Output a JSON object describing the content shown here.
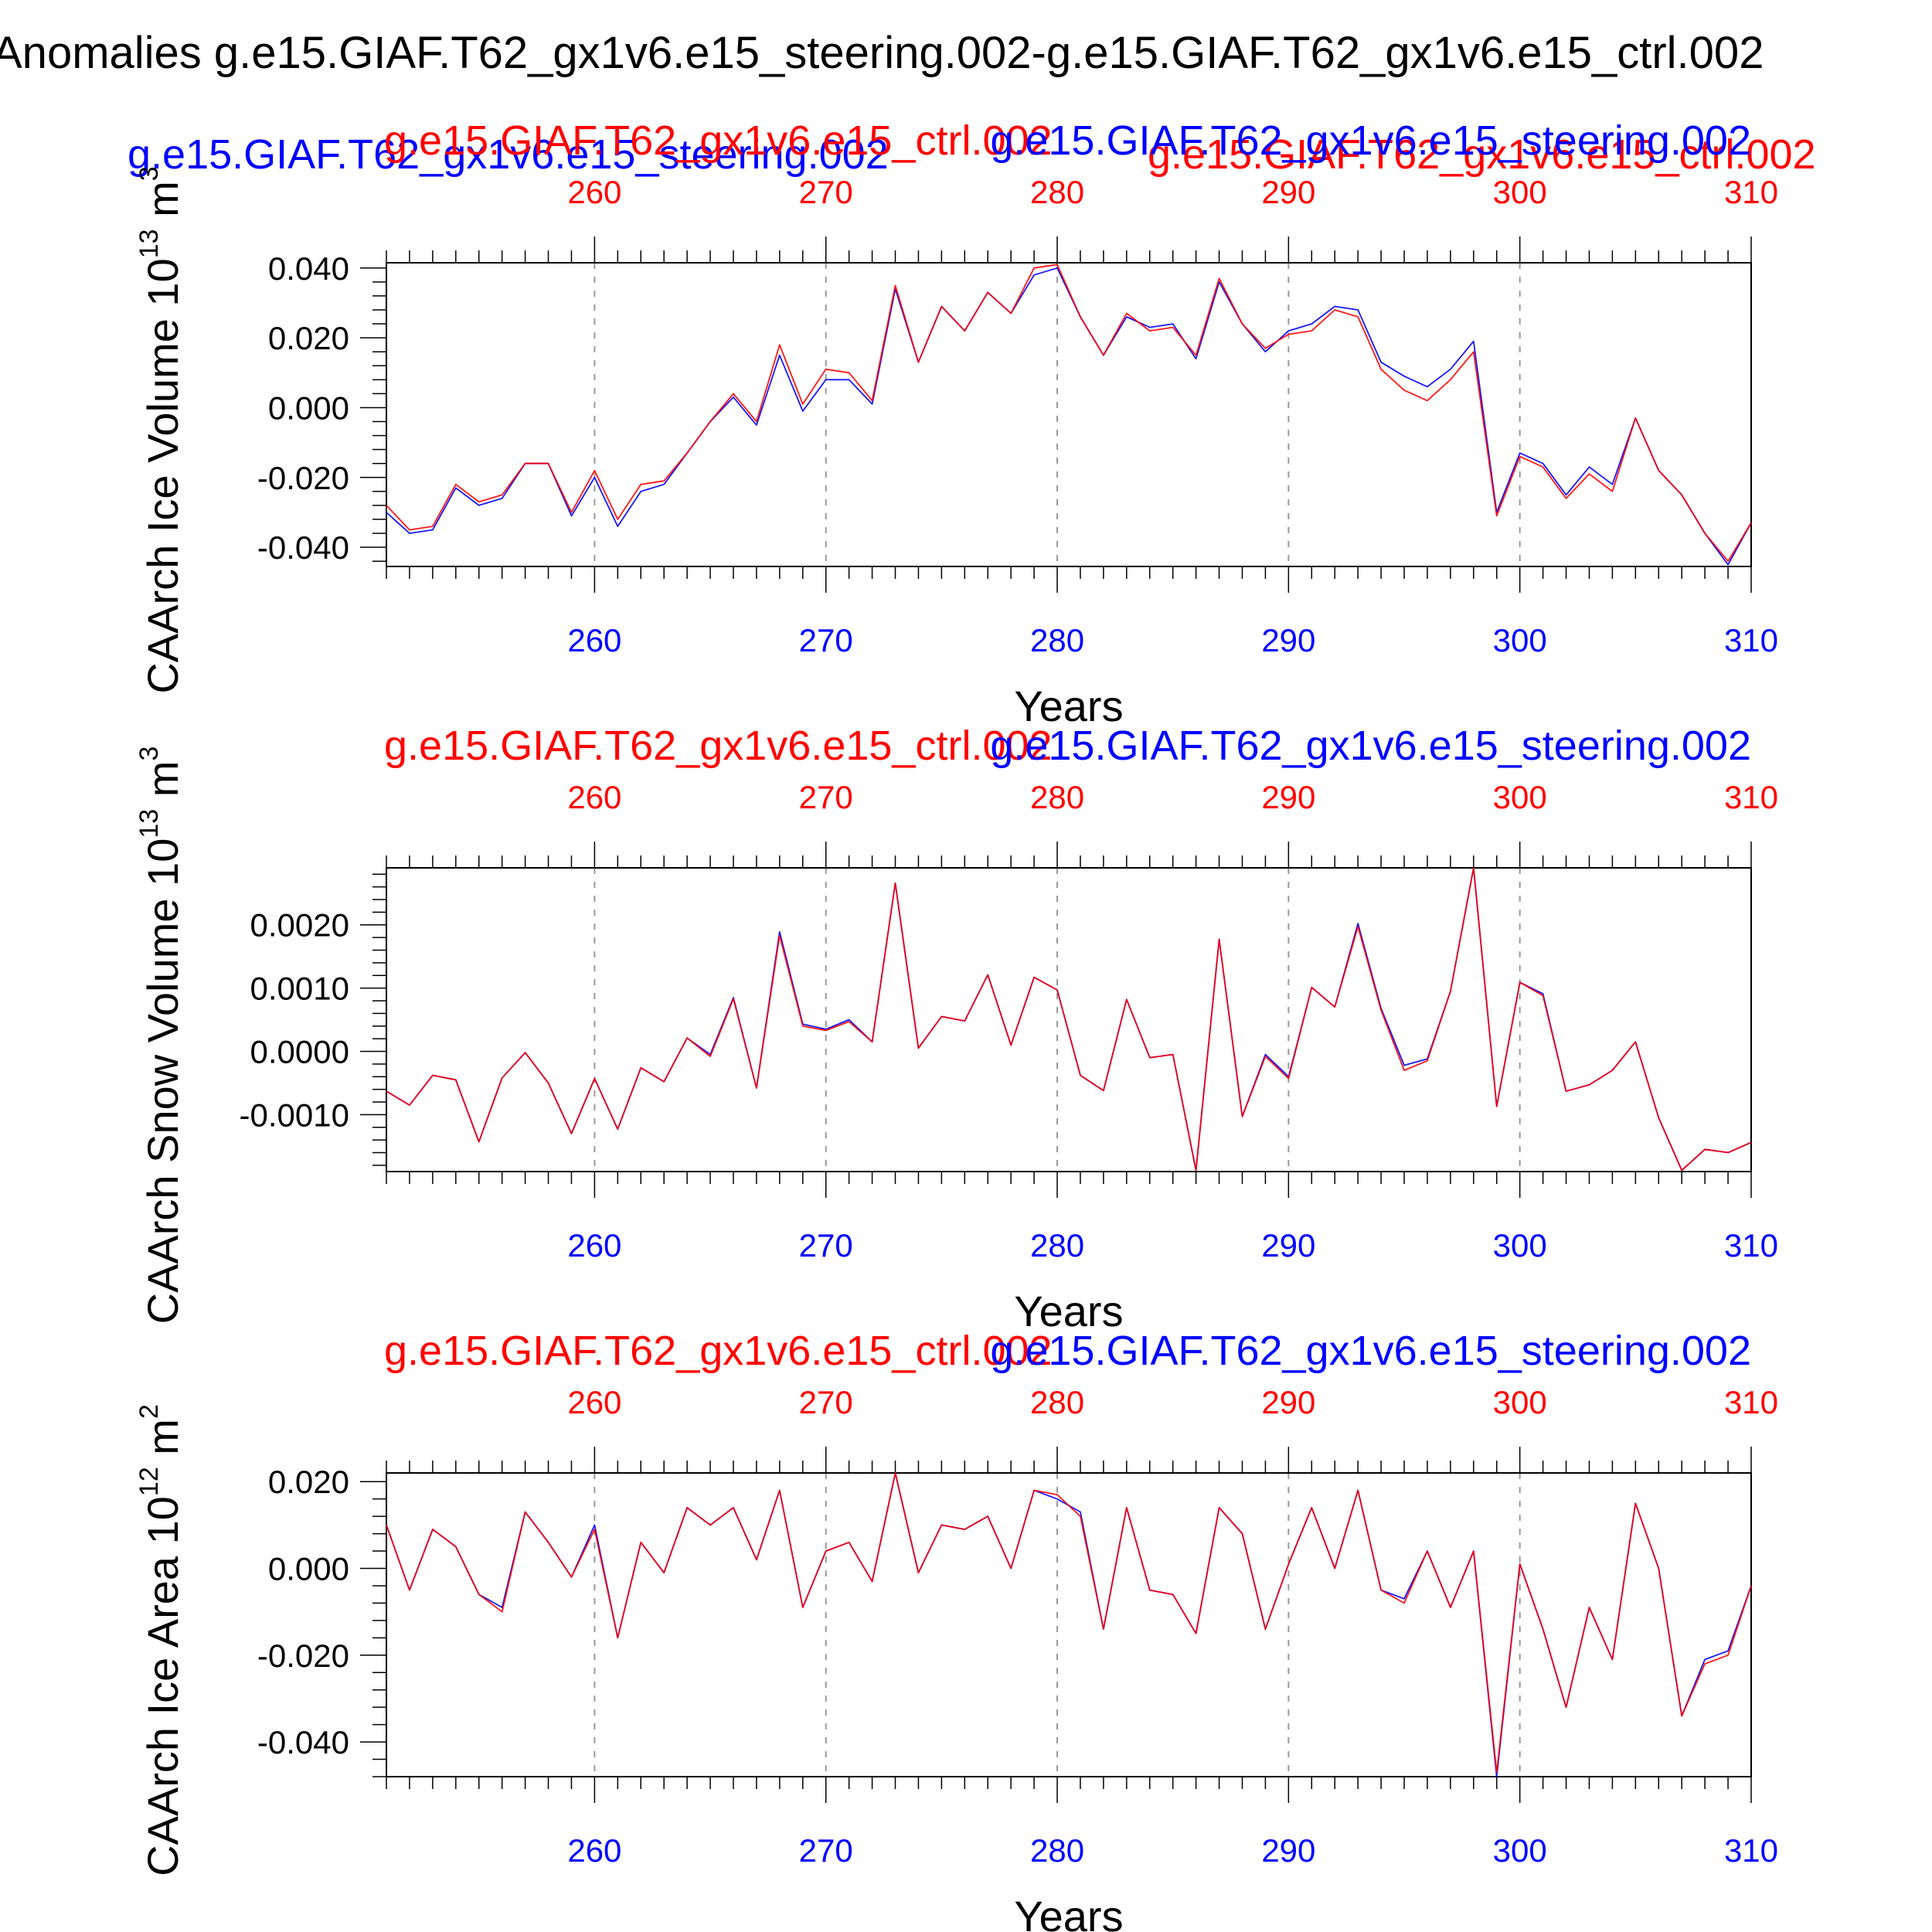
{
  "title": "Anomalies g.e15.GIAF.T62_gx1v6.e15_steering.002-g.e15.GIAF.T62_gx1v6.e15_ctrl.002",
  "header_labels": {
    "blue_left": "g.e15.GIAF.T62_gx1v6.e15_steering.002",
    "red_right": "g.e15.GIAF.T62_gx1v6.e15_ctrl.002"
  },
  "colors": {
    "steering": "#0000ff",
    "ctrl": "#ff0000",
    "axis": "#000000",
    "grid": "#999999"
  },
  "chart_data": [
    {
      "type": "line",
      "panel_id": "ice-volume",
      "ylabel": "CAArch Ice Volume 10",
      "ylabel_exp": "13",
      "ylabel_unit": " m",
      "ylabel_unit_exp": "3",
      "xlabel": "Years",
      "top_left_title": "g.e15.GIAF.T62_gx1v6.e15_ctrl.002",
      "top_right_title": "g.e15.GIAF.T62_gx1v6.e15_steering.002",
      "xlim": [
        251,
        310
      ],
      "ylim": [
        -0.0455,
        0.0415
      ],
      "xticks": [
        "260",
        "270",
        "280",
        "290",
        "300",
        "310"
      ],
      "xtick_values": [
        260,
        270,
        280,
        290,
        300,
        310
      ],
      "yticks": [
        "-0.040",
        "-0.020",
        "0.000",
        "0.020",
        "0.040"
      ],
      "ytick_values": [
        -0.04,
        -0.02,
        0.0,
        0.02,
        0.04
      ],
      "x_start": 251,
      "series": [
        {
          "name": "g.e15.GIAF.T62_gx1v6.e15_steering.002",
          "color": "blue",
          "values": [
            -0.03,
            -0.036,
            -0.035,
            -0.023,
            -0.028,
            -0.026,
            -0.016,
            -0.016,
            -0.031,
            -0.02,
            -0.034,
            -0.024,
            -0.022,
            -0.013,
            -0.004,
            0.003,
            -0.005,
            0.015,
            -0.001,
            0.008,
            0.008,
            0.001,
            0.034,
            0.013,
            0.029,
            0.022,
            0.033,
            0.027,
            0.038,
            0.04,
            0.026,
            0.015,
            0.026,
            0.023,
            0.024,
            0.014,
            0.036,
            0.024,
            0.016,
            0.022,
            0.024,
            0.029,
            0.028,
            0.013,
            0.009,
            0.006,
            0.011,
            0.019,
            -0.03,
            -0.013,
            -0.016,
            -0.025,
            -0.017,
            -0.022,
            -0.003,
            -0.018,
            -0.025,
            -0.036,
            -0.045,
            -0.033
          ]
        },
        {
          "name": "g.e15.GIAF.T62_gx1v6.e15_ctrl.002",
          "color": "red",
          "values": [
            -0.028,
            -0.035,
            -0.034,
            -0.022,
            -0.027,
            -0.025,
            -0.016,
            -0.016,
            -0.03,
            -0.018,
            -0.032,
            -0.022,
            -0.021,
            -0.013,
            -0.004,
            0.004,
            -0.004,
            0.018,
            0.001,
            0.011,
            0.01,
            0.002,
            0.035,
            0.013,
            0.029,
            0.022,
            0.033,
            0.027,
            0.04,
            0.041,
            0.026,
            0.015,
            0.027,
            0.022,
            0.023,
            0.015,
            0.037,
            0.024,
            0.017,
            0.021,
            0.022,
            0.028,
            0.026,
            0.011,
            0.005,
            0.002,
            0.008,
            0.016,
            -0.031,
            -0.014,
            -0.017,
            -0.026,
            -0.019,
            -0.024,
            -0.003,
            -0.018,
            -0.025,
            -0.036,
            -0.044,
            -0.033
          ]
        }
      ]
    },
    {
      "type": "line",
      "panel_id": "snow-volume",
      "ylabel": "CAArch Snow Volume 10",
      "ylabel_exp": "13",
      "ylabel_unit": " m",
      "ylabel_unit_exp": "3",
      "xlabel": "Years",
      "top_left_title": "g.e15.GIAF.T62_gx1v6.e15_ctrl.002",
      "top_right_title": "g.e15.GIAF.T62_gx1v6.e15_steering.002",
      "xlim": [
        251,
        310
      ],
      "ylim": [
        -0.0019,
        0.0029
      ],
      "xticks": [
        "260",
        "270",
        "280",
        "290",
        "300",
        "310"
      ],
      "xtick_values": [
        260,
        270,
        280,
        290,
        300,
        310
      ],
      "yticks": [
        "-0.0010",
        "0.0000",
        "0.0010",
        "0.0020"
      ],
      "ytick_values": [
        -0.001,
        0.0,
        0.001,
        0.002
      ],
      "x_start": 251,
      "series": [
        {
          "name": "g.e15.GIAF.T62_gx1v6.e15_steering.002",
          "color": "blue",
          "values": [
            -0.00063,
            -0.00085,
            -0.00038,
            -0.00045,
            -0.00143,
            -0.00042,
            -2e-05,
            -0.0005,
            -0.0013,
            -0.00043,
            -0.00123,
            -0.00026,
            -0.00048,
            0.00021,
            -5e-05,
            0.00085,
            -0.00058,
            0.00189,
            0.00043,
            0.00035,
            0.0005,
            0.00015,
            0.00266,
            5e-05,
            0.00055,
            0.00048,
            0.00121,
            0.0001,
            0.00117,
            0.00097,
            -0.00038,
            -0.00062,
            0.00082,
            -0.0001,
            -5e-05,
            -0.00188,
            0.00177,
            -0.00103,
            -5e-05,
            -0.0004,
            0.00101,
            0.0007,
            0.00202,
            0.00068,
            -0.00022,
            -0.00012,
            0.00095,
            0.0029,
            -0.00087,
            0.00109,
            0.00091,
            -0.00063,
            -0.00053,
            -0.0003,
            0.00015,
            -0.00105,
            -0.00188,
            -0.00155,
            -0.0016,
            -0.00144
          ]
        },
        {
          "name": "g.e15.GIAF.T62_gx1v6.e15_ctrl.002",
          "color": "red",
          "values": [
            -0.00063,
            -0.00085,
            -0.00038,
            -0.00045,
            -0.00143,
            -0.00042,
            -2e-05,
            -0.0005,
            -0.0013,
            -0.00043,
            -0.00123,
            -0.00026,
            -0.00048,
            0.00021,
            -8e-05,
            0.00083,
            -0.00058,
            0.00183,
            0.0004,
            0.00033,
            0.00047,
            0.00015,
            0.00266,
            5e-05,
            0.00055,
            0.00048,
            0.00121,
            0.0001,
            0.00117,
            0.00097,
            -0.00038,
            -0.00062,
            0.00082,
            -0.0001,
            -5e-05,
            -0.00188,
            0.00177,
            -0.00103,
            -8e-05,
            -0.00043,
            0.00101,
            0.0007,
            0.00197,
            0.00065,
            -0.0003,
            -0.00015,
            0.00095,
            0.0029,
            -0.00087,
            0.00109,
            0.00088,
            -0.00063,
            -0.00053,
            -0.0003,
            0.00015,
            -0.00105,
            -0.00188,
            -0.00155,
            -0.0016,
            -0.00144
          ]
        }
      ]
    },
    {
      "type": "line",
      "panel_id": "ice-area",
      "ylabel": "CAArch Ice Area 10",
      "ylabel_exp": "12",
      "ylabel_unit": " m",
      "ylabel_unit_exp": "2",
      "xlabel": "Years",
      "top_left_title": "g.e15.GIAF.T62_gx1v6.e15_ctrl.002",
      "top_right_title": "g.e15.GIAF.T62_gx1v6.e15_steering.002",
      "xlim": [
        251,
        310
      ],
      "ylim": [
        -0.048,
        0.022
      ],
      "xticks": [
        "260",
        "270",
        "280",
        "290",
        "300",
        "310"
      ],
      "xtick_values": [
        260,
        270,
        280,
        290,
        300,
        310
      ],
      "yticks": [
        "-0.040",
        "-0.020",
        "0.000",
        "0.020"
      ],
      "ytick_values": [
        -0.04,
        -0.02,
        0.0,
        0.02
      ],
      "x_start": 251,
      "series": [
        {
          "name": "g.e15.GIAF.T62_gx1v6.e15_steering.002",
          "color": "blue",
          "values": [
            0.01,
            -0.005,
            0.009,
            0.005,
            -0.006,
            -0.009,
            0.013,
            0.006,
            -0.002,
            0.01,
            -0.016,
            0.006,
            -0.001,
            0.014,
            0.01,
            0.014,
            0.002,
            0.018,
            -0.009,
            0.004,
            0.006,
            -0.003,
            0.022,
            -0.001,
            0.01,
            0.009,
            0.012,
            0.0,
            0.018,
            0.016,
            0.013,
            -0.014,
            0.014,
            -0.005,
            -0.006,
            -0.015,
            0.014,
            0.008,
            -0.014,
            0.001,
            0.014,
            0.0,
            0.018,
            -0.005,
            -0.007,
            0.004,
            -0.009,
            0.004,
            -0.048,
            0.001,
            -0.014,
            -0.032,
            -0.009,
            -0.021,
            0.015,
            0.0,
            -0.034,
            -0.021,
            -0.019,
            -0.004
          ]
        },
        {
          "name": "g.e15.GIAF.T62_gx1v6.e15_ctrl.002",
          "color": "red",
          "values": [
            0.01,
            -0.005,
            0.009,
            0.005,
            -0.006,
            -0.01,
            0.013,
            0.006,
            -0.002,
            0.009,
            -0.016,
            0.006,
            -0.001,
            0.014,
            0.01,
            0.014,
            0.002,
            0.018,
            -0.009,
            0.004,
            0.006,
            -0.003,
            0.022,
            -0.001,
            0.01,
            0.009,
            0.012,
            0.0,
            0.018,
            0.017,
            0.012,
            -0.014,
            0.014,
            -0.005,
            -0.006,
            -0.015,
            0.014,
            0.008,
            -0.014,
            0.001,
            0.014,
            0.0,
            0.018,
            -0.005,
            -0.008,
            0.004,
            -0.009,
            0.004,
            -0.047,
            0.001,
            -0.014,
            -0.032,
            -0.009,
            -0.021,
            0.015,
            0.0,
            -0.034,
            -0.022,
            -0.02,
            -0.004
          ]
        }
      ]
    }
  ]
}
